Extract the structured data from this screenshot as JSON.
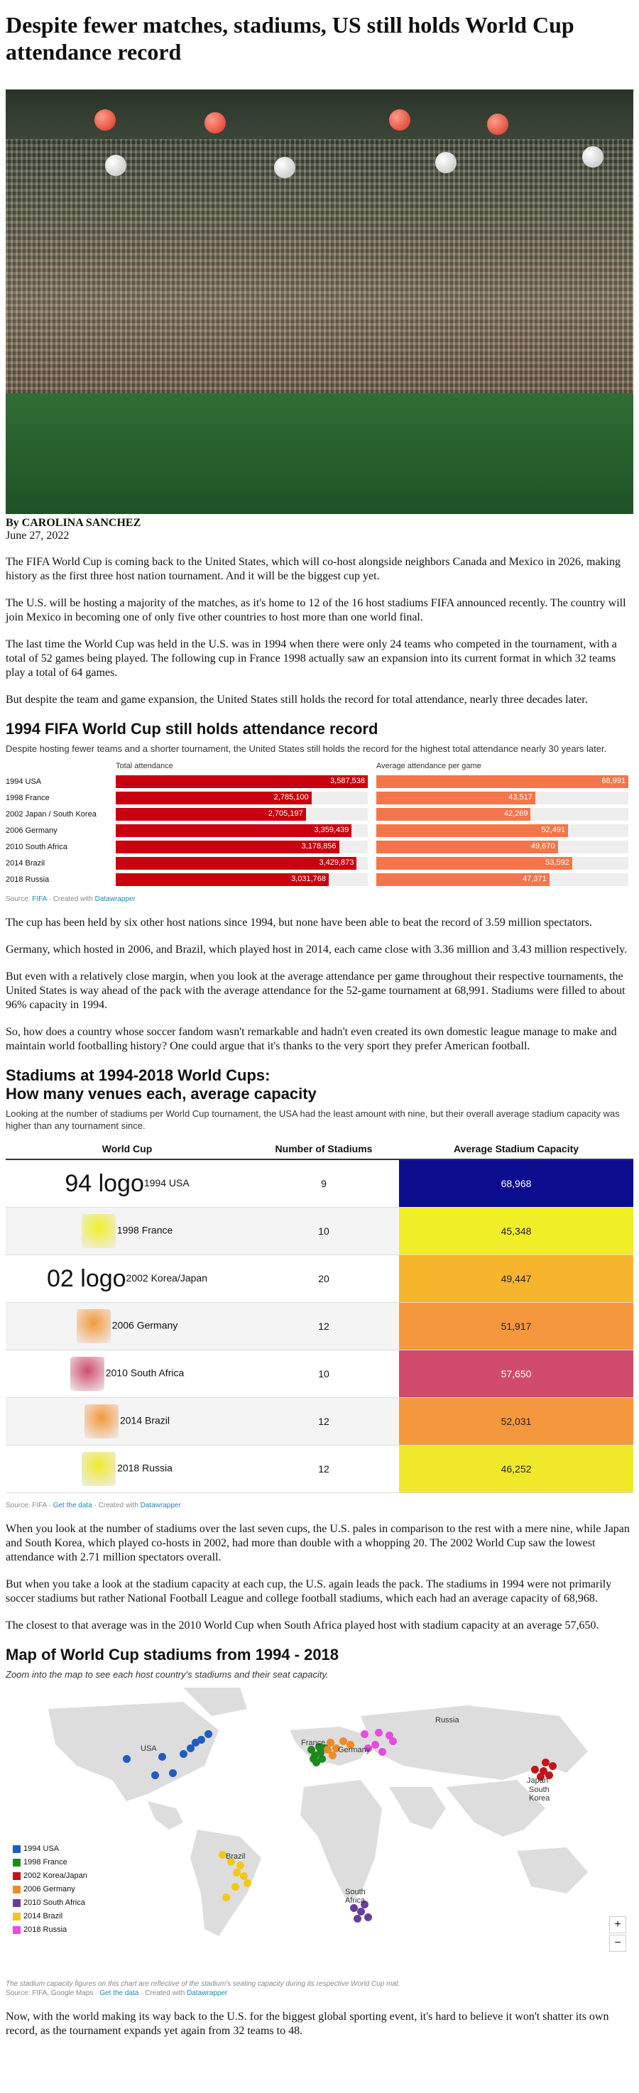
{
  "title": "Despite fewer matches, stadiums, US still holds World Cup attendance record",
  "byline": "By CAROLINA SANCHEZ",
  "date": "June 27, 2022",
  "paragraphs1": [
    "The FIFA World Cup is coming back to the United States, which will co-host alongside neighbors Canada and Mexico in 2026, making history as the first three host nation tournament. And it will be the biggest cup yet.",
    "The U.S. will be hosting a majority of the matches, as it's home to 12 of the 16 host stadiums FIFA announced recently. The country will join Mexico in becoming one of only five other countries to host more than one world final.",
    "The last time the World Cup was held in the U.S. was in 1994 when there were only 24 teams who competed in the tournament, with a total of 52 games being played. The following cup in France 1998 actually saw an expansion into its current format in which 32 teams play a total of 64 games.",
    "But despite the team and game expansion, the United States still holds the record for total attendance, nearly three decades later."
  ],
  "chart1": {
    "title": "1994 FIFA World Cup still holds attendance record",
    "desc": "Despite hosting fewer teams and a shorter tournament, the United States still holds the record for the highest total attendance nearly 30 years later.",
    "col1": "Total attendance",
    "col2": "Average attendance per game",
    "source_label": "Source:",
    "source_link": "FIFA",
    "created": "· Created with",
    "created_link": "Datawrapper"
  },
  "chart_data": {
    "type": "bar",
    "categories": [
      "1994 USA",
      "1998 France",
      "2002 Japan / South Korea",
      "2006 Germany",
      "2010 South Africa",
      "2014 Brazil",
      "2018 Russia"
    ],
    "series": [
      {
        "name": "Total attendance",
        "values": [
          3587538,
          2785100,
          2705197,
          3359439,
          3178856,
          3429873,
          3031768
        ],
        "labels": [
          "3,587,538",
          "2,785,100",
          "2,705,197",
          "3,359,439",
          "3,178,856",
          "3,429,873",
          "3,031,768"
        ],
        "max": 3587538,
        "color": "#c9000f"
      },
      {
        "name": "Average attendance per game",
        "values": [
          68991,
          43517,
          42269,
          52491,
          49670,
          53592,
          47371
        ],
        "labels": [
          "68,991",
          "43,517",
          "42,269",
          "52,491",
          "49,670",
          "53,592",
          "47,371"
        ],
        "max": 68991,
        "color": "#f4754a"
      }
    ]
  },
  "paragraphs2": [
    "The cup has been held by six other host nations since 1994, but none have been able to beat the record of 3.59 million spectators.",
    "Germany, which hosted in 2006, and Brazil, which played host in 2014, each came close with 3.36 million and 3.43 million respectively.",
    "But even with a relatively close margin, when you look at the average attendance per game throughout their respective tournaments, the United States is way ahead of the pack with the average attendance for the 52-game tournament at 68,991. Stadiums were filled to about 96% capacity in 1994.",
    "So, how does a country whose soccer fandom wasn't remarkable and hadn't even created its own domestic league manage to make and maintain world footballing history? One could argue that it's thanks to the very sport they prefer American football."
  ],
  "table": {
    "title_line1": "Stadiums at 1994-2018 World Cups:",
    "title_line2": "How many venues each, average capacity",
    "desc": "Looking at the number of stadiums per World Cup tournament, the USA had the least amount with nine, but their overall average stadium capacity was higher than any tournament since.",
    "headers": [
      "World Cup",
      "Number of Stadiums",
      "Average Stadium Capacity"
    ],
    "rows": [
      {
        "logo_alt": "94 logo",
        "name": "1994 USA",
        "stadiums": "9",
        "capacity": "68,968",
        "color": "#0c0d8e",
        "text": "#ffffff"
      },
      {
        "logo_alt": "",
        "name": "1998 France",
        "stadiums": "10",
        "capacity": "45,348",
        "color": "#f0ef27",
        "text": "#222222"
      },
      {
        "logo_alt": "02 logo",
        "name": "2002 Korea/Japan",
        "stadiums": "20",
        "capacity": "49,447",
        "color": "#f6b52d",
        "text": "#222222"
      },
      {
        "logo_alt": "",
        "name": "2006 Germany",
        "stadiums": "12",
        "capacity": "51,917",
        "color": "#f5983d",
        "text": "#222222"
      },
      {
        "logo_alt": "",
        "name": "2010 South Africa",
        "stadiums": "10",
        "capacity": "57,650",
        "color": "#d14b6c",
        "text": "#ffffff"
      },
      {
        "logo_alt": "",
        "name": "2014 Brazil",
        "stadiums": "12",
        "capacity": "52,031",
        "color": "#f5983d",
        "text": "#222222"
      },
      {
        "logo_alt": "",
        "name": "2018 Russia",
        "stadiums": "12",
        "capacity": "46,252",
        "color": "#f0e92a",
        "text": "#222222"
      }
    ],
    "source": "Source: FIFA ·",
    "get_data": "Get the data",
    "created": "· Created with",
    "created_link": "Datawrapper"
  },
  "paragraphs3": [
    "When you look at the number of stadiums over the last seven cups, the U.S. pales in comparison to the rest with a mere nine, while Japan and South Korea, which played co-hosts in 2002, had more than double with a whopping 20. The 2002 World Cup saw the lowest attendance with 2.71 million spectators overall.",
    "But when you take a look at the stadium capacity at each cup, the U.S. again leads the pack. The stadiums in 1994 were not primarily soccer stadiums but rather National Football League and college football stadiums, which each had an average capacity of 68,968.",
    "The closest to that average was in the 2010 World Cup when South Africa played host with stadium capacity at an average 57,650."
  ],
  "map": {
    "title": "Map of World Cup stadiums from 1994 - 2018",
    "desc": "Zoom into the map to see each host country's stadiums and their seat capacity.",
    "legend": [
      {
        "label": "1994 USA",
        "color": "#1f5dbf"
      },
      {
        "label": "1998 France",
        "color": "#1e8a1e"
      },
      {
        "label": "2002 Korea/Japan",
        "color": "#c0161b"
      },
      {
        "label": "2006 Germany",
        "color": "#f08a24"
      },
      {
        "label": "2010 South Africa",
        "color": "#6a3d9a"
      },
      {
        "label": "2014 Brazil",
        "color": "#f2c71a"
      },
      {
        "label": "2018 Russia",
        "color": "#e44ddd"
      }
    ],
    "labels": {
      "usa": "USA",
      "france": "France",
      "germany": "Germany",
      "russia": "Russia",
      "japan": "Japan",
      "skorea": "South Korea",
      "brazil": "Brazil",
      "safrica": "South Africa"
    },
    "zoom_in": "+",
    "zoom_out": "−",
    "note": "The stadium capacity figures on this chart are reflective of the stadium's seating capacity during its respective World Cup mat.",
    "source": "Source: FIFA, Google Maps ·",
    "get_data": "Get the data",
    "created": "· Created with",
    "created_link": "Datawrapper"
  },
  "closing": "Now, with the world making its way back to the U.S. for the biggest global sporting event, it's hard to believe it won't shatter its own record, as the tournament expands yet again from 32 teams to 48."
}
